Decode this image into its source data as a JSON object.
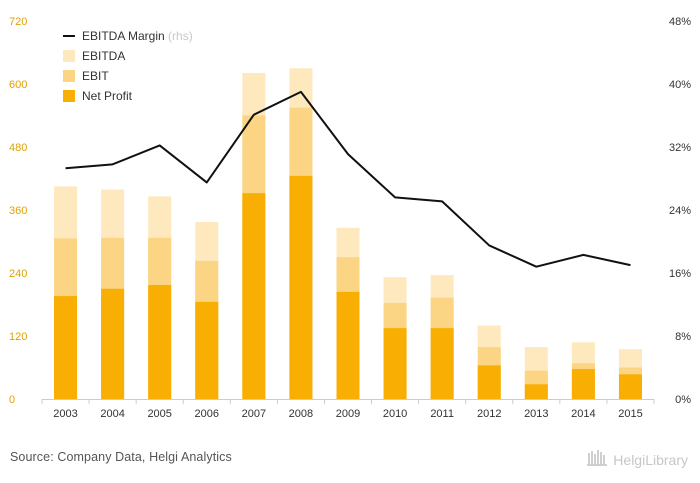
{
  "chart_data": {
    "type": "bar",
    "categories": [
      "2003",
      "2004",
      "2005",
      "2006",
      "2007",
      "2008",
      "2009",
      "2010",
      "2011",
      "2012",
      "2013",
      "2014",
      "2015"
    ],
    "series": [
      {
        "name": "EBITDA",
        "type": "bar",
        "color": "#fde9bd",
        "values": [
          405,
          399,
          386,
          337,
          621,
          630,
          326,
          232,
          236,
          140,
          99,
          108,
          95
        ]
      },
      {
        "name": "EBIT",
        "type": "bar",
        "color": "#fbd584",
        "values": [
          306,
          307,
          307,
          263,
          540,
          555,
          270,
          183,
          193,
          99,
          54,
          68,
          60
        ]
      },
      {
        "name": "Net Profit",
        "type": "bar",
        "color": "#f8ae02",
        "values": [
          196,
          210,
          217,
          185,
          392,
          425,
          204,
          135,
          135,
          64,
          28,
          57,
          47
        ]
      },
      {
        "name": "EBITDA Margin",
        "type": "line",
        "axis": "right",
        "color": "#111111",
        "values": [
          29.3,
          29.8,
          32.2,
          27.5,
          36.1,
          39.0,
          31.1,
          25.6,
          25.1,
          19.5,
          16.8,
          18.3,
          17.0
        ]
      }
    ],
    "legend_note": "(rhs)",
    "yticks_left": [
      "0",
      "120",
      "240",
      "360",
      "480",
      "600",
      "720"
    ],
    "yticks_right": [
      "0%",
      "8%",
      "16%",
      "24%",
      "32%",
      "40%",
      "48%"
    ],
    "ylim_left": [
      0,
      720
    ],
    "ylim_right": [
      0,
      48
    ],
    "legend_position": "top-left",
    "grid": false,
    "left_axis_color": "#e0a100"
  },
  "footer": {
    "source": "Source: Company Data, Helgi Analytics",
    "logo_text": "HelgiLibrary",
    "logo_icon": "helgi-library-bookshelf-icon"
  }
}
